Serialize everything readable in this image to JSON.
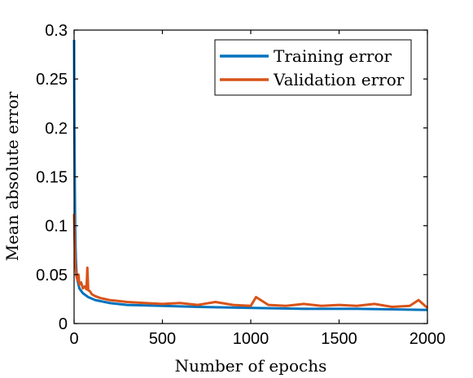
{
  "chart_data": {
    "type": "line",
    "title": "",
    "xlabel": "Number of epochs",
    "ylabel": "Mean absolute error",
    "xlim": [
      0,
      2000
    ],
    "ylim": [
      0,
      0.3
    ],
    "xticks": [
      0,
      500,
      1000,
      1500,
      2000
    ],
    "xtick_labels": [
      "0",
      "500",
      "1000",
      "1500",
      "2000"
    ],
    "yticks": [
      0,
      0.05,
      0.1,
      0.15,
      0.2,
      0.25,
      0.3
    ],
    "ytick_labels": [
      "0",
      "0.05",
      "0.1",
      "0.15",
      "0.2",
      "0.25",
      "0.3"
    ],
    "grid": false,
    "legend_position": "top-right",
    "series": [
      {
        "name": "Training error",
        "color": "#0072BD",
        "x": [
          0,
          2,
          4,
          6,
          8,
          10,
          14,
          20,
          30,
          50,
          80,
          120,
          200,
          300,
          500,
          700,
          1000,
          1300,
          1600,
          2000
        ],
        "y": [
          0.29,
          0.2,
          0.14,
          0.1,
          0.08,
          0.065,
          0.052,
          0.044,
          0.036,
          0.031,
          0.027,
          0.024,
          0.021,
          0.019,
          0.018,
          0.017,
          0.016,
          0.015,
          0.015,
          0.014
        ]
      },
      {
        "name": "Validation error",
        "color": "#D95319",
        "x": [
          0,
          2,
          4,
          6,
          8,
          10,
          14,
          20,
          25,
          30,
          40,
          50,
          60,
          70,
          75,
          80,
          90,
          100,
          120,
          150,
          200,
          250,
          300,
          400,
          500,
          600,
          700,
          800,
          900,
          1000,
          1030,
          1100,
          1200,
          1300,
          1400,
          1500,
          1600,
          1700,
          1800,
          1900,
          1950,
          2000
        ],
        "y": [
          0.112,
          0.095,
          0.08,
          0.068,
          0.06,
          0.055,
          0.048,
          0.044,
          0.05,
          0.04,
          0.042,
          0.036,
          0.038,
          0.035,
          0.057,
          0.034,
          0.033,
          0.03,
          0.028,
          0.026,
          0.024,
          0.023,
          0.022,
          0.021,
          0.02,
          0.021,
          0.019,
          0.022,
          0.019,
          0.018,
          0.027,
          0.019,
          0.018,
          0.02,
          0.018,
          0.019,
          0.018,
          0.02,
          0.017,
          0.018,
          0.024,
          0.016
        ]
      }
    ]
  }
}
